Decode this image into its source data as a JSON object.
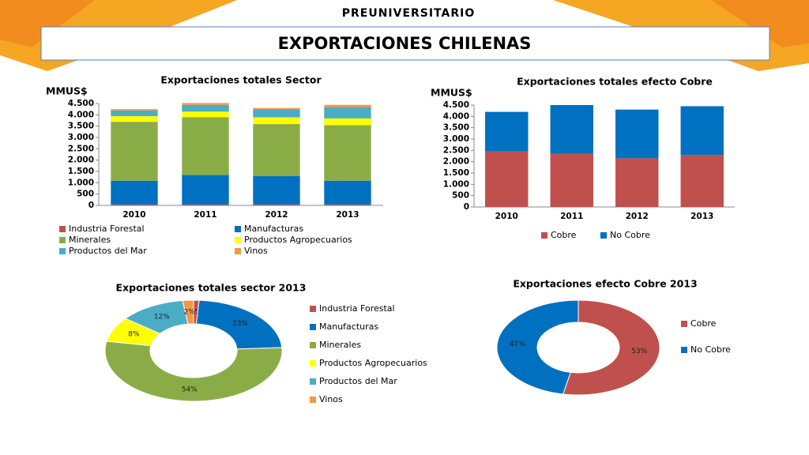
{
  "header": {
    "logo": "PREUNIVERSITARIO",
    "title": "EXPORTACIONES CHILENAS"
  },
  "chart_data": [
    {
      "type": "bar",
      "stacked": true,
      "title": "Exportaciones totales Sector",
      "y_label": "MMUS$",
      "categories": [
        "2010",
        "2011",
        "2012",
        "2013"
      ],
      "series": [
        {
          "name": "Industria Forestal",
          "color": "#c0504d",
          "values": [
            40,
            40,
            40,
            40
          ]
        },
        {
          "name": "Manufacturas",
          "color": "#0070c0",
          "values": [
            1050,
            1300,
            1250,
            1050
          ]
        },
        {
          "name": "Minerales",
          "color": "#8aac46",
          "values": [
            2600,
            2550,
            2300,
            2450
          ]
        },
        {
          "name": "Productos Agropecuarios",
          "color": "#ffff00",
          "values": [
            250,
            250,
            300,
            300
          ]
        },
        {
          "name": "Productos del Mar",
          "color": "#4bacc6",
          "values": [
            250,
            300,
            350,
            500
          ]
        },
        {
          "name": "Vinos",
          "color": "#f79646",
          "values": [
            60,
            80,
            60,
            100
          ]
        }
      ],
      "ylim": [
        0,
        4500
      ],
      "yticks": [
        0,
        500,
        {
          "value": 1000,
          "label": "1.000"
        },
        {
          "value": 1500,
          "label": "1.500"
        },
        {
          "value": 2000,
          "label": "2.000"
        },
        {
          "value": 2500,
          "label": "2.500"
        },
        {
          "value": 3000,
          "label": "3.000"
        },
        {
          "value": 3500,
          "label": "3.500"
        },
        {
          "value": 4000,
          "label": "4.000"
        },
        {
          "value": 4500,
          "label": "4.500"
        }
      ]
    },
    {
      "type": "bar",
      "stacked": true,
      "title": "Exportaciones totales efecto Cobre",
      "y_label": "MMUS$",
      "categories": [
        "2010",
        "2011",
        "2012",
        "2013"
      ],
      "series": [
        {
          "name": "Cobre",
          "color": "#c0504d",
          "values": [
            2450,
            2350,
            2150,
            2300
          ]
        },
        {
          "name": "No Cobre",
          "color": "#0070c0",
          "values": [
            1750,
            2150,
            2150,
            2150
          ]
        }
      ],
      "ylim": [
        0,
        4500
      ],
      "yticks": [
        0,
        500,
        {
          "value": 1000,
          "label": "1.000"
        },
        {
          "value": 1500,
          "label": "1.500"
        },
        {
          "value": 2000,
          "label": "2.000"
        },
        {
          "value": 2500,
          "label": "2.500"
        },
        {
          "value": 3000,
          "label": "3.000"
        },
        {
          "value": 3500,
          "label": "3.500"
        },
        {
          "value": 4000,
          "label": "4.000"
        },
        {
          "value": 4500,
          "label": "4.500"
        }
      ]
    },
    {
      "type": "pie",
      "donut": true,
      "title": "Exportaciones  totales sector 2013",
      "categories": [
        "Industria Forestal",
        "Manufacturas",
        "Minerales",
        "Productos Agropecuarios",
        "Productos del Mar",
        "Vinos"
      ],
      "colors": [
        "#c0504d",
        "#0070c0",
        "#8aac46",
        "#ffff00",
        "#4bacc6",
        "#f79646"
      ],
      "values": [
        1,
        23,
        54,
        8,
        12,
        2
      ],
      "value_labels": [
        "1%",
        "23%",
        "54%",
        "8%",
        "12%",
        "2%"
      ]
    },
    {
      "type": "pie",
      "donut": true,
      "title": "Exportaciones efecto Cobre 2013",
      "categories": [
        "Cobre",
        "No Cobre"
      ],
      "colors": [
        "#c0504d",
        "#0070c0"
      ],
      "values": [
        53,
        47
      ],
      "value_labels": [
        "53%",
        "47%"
      ]
    }
  ]
}
